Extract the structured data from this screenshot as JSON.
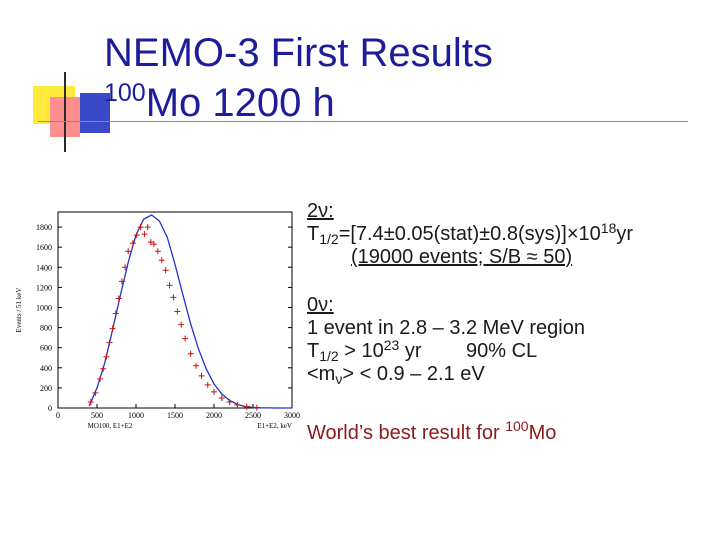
{
  "title": {
    "line1": "NEMO-3 First Results",
    "mass_number": "100",
    "line2": "Mo 1200 h"
  },
  "two_nu": {
    "heading": "2ν:",
    "t_half": "T",
    "t_sub": "1/2",
    "value": "=[7.4±0.05(stat)±0.8(sys)]×10",
    "exp": "18",
    "unit": "yr",
    "events": "(19000 events; S/B ≈ 50)"
  },
  "zero_nu": {
    "heading": "0ν:",
    "line1": "1 event in 2.8 – 3.2 MeV region",
    "t_half": "T",
    "t_sub": "1/2",
    "limit_pre": " > 10",
    "limit_exp": "23",
    "limit_post": " yr        90% CL",
    "mass_pre": "<m",
    "mass_sub": "ν",
    "mass_post": "> < 0.9 – 2.1 eV"
  },
  "best": {
    "text": "World’s best result for ",
    "mass_number": "100",
    "element": "Mo"
  },
  "chart_data": {
    "type": "scatter",
    "ylabel": "Events / 51 keV",
    "xlabel": "MO100, E1+E2",
    "xlabel_right": "E1+E2, keV",
    "xticks": [
      0,
      500,
      1000,
      1500,
      2000,
      2500,
      3000
    ],
    "yticks": [
      0,
      200,
      400,
      600,
      800,
      1000,
      1200,
      1400,
      1600,
      1800
    ],
    "xlim": [
      0,
      3000
    ],
    "ylim": [
      0,
      1950
    ],
    "colors": {
      "curve": "#2233cc",
      "points": "#cc1111"
    },
    "series": [
      {
        "type": "points",
        "x": [
          420,
          480,
          540,
          580,
          620,
          660,
          700,
          740,
          780,
          820,
          860,
          900,
          960,
          1010,
          1060,
          1110,
          1150,
          1190,
          1230,
          1280,
          1330,
          1380,
          1430,
          1480,
          1530,
          1580,
          1630,
          1700,
          1770,
          1840,
          1920,
          2000,
          2100,
          2200,
          2300,
          2420,
          2550
        ],
        "y": [
          60,
          150,
          290,
          390,
          510,
          650,
          790,
          940,
          1090,
          1260,
          1400,
          1560,
          1640,
          1720,
          1800,
          1730,
          1800,
          1650,
          1630,
          1560,
          1470,
          1370,
          1220,
          1100,
          960,
          830,
          690,
          540,
          420,
          320,
          230,
          160,
          100,
          60,
          30,
          12,
          4
        ]
      },
      {
        "type": "curve",
        "x": [
          400,
          500,
          600,
          700,
          800,
          900,
          1000,
          1100,
          1200,
          1300,
          1400,
          1500,
          1600,
          1700,
          1800,
          1900,
          2000,
          2100,
          2200,
          2300,
          2400,
          2500,
          2600,
          2700,
          2800,
          2900,
          3000
        ],
        "y": [
          20,
          200,
          450,
          780,
          1120,
          1450,
          1720,
          1880,
          1920,
          1860,
          1700,
          1430,
          1130,
          840,
          590,
          390,
          240,
          140,
          75,
          35,
          15,
          6,
          2,
          1,
          0,
          0,
          0
        ]
      }
    ]
  }
}
